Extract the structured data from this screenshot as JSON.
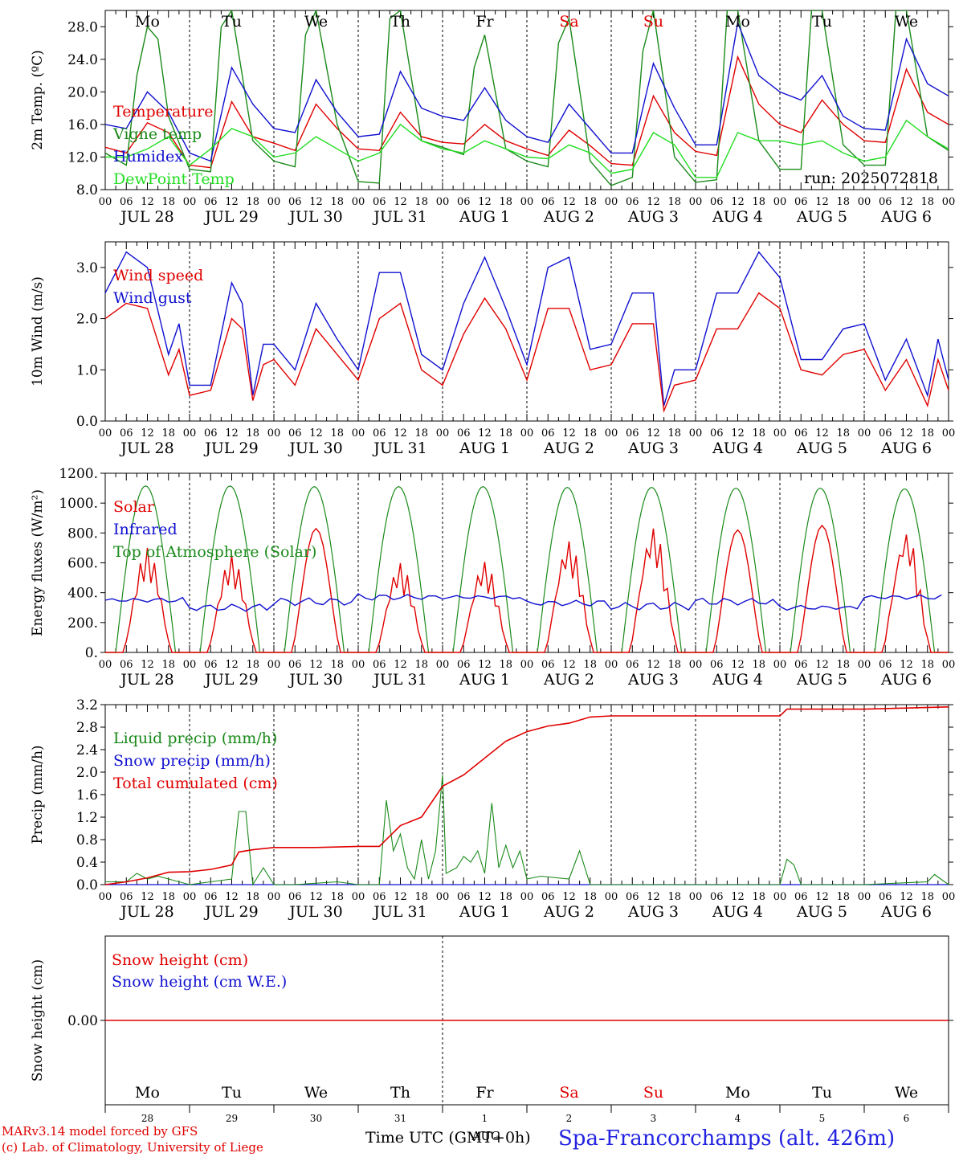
{
  "run_label": "run: 2025072818",
  "x_axis": {
    "hour_ticks": [
      "00",
      "06",
      "12",
      "18"
    ],
    "date_labels": [
      "JUL 28",
      "JUL 29",
      "JUL 30",
      "JUL 31",
      "AUG  1",
      "AUG  2",
      "AUG  3",
      "AUG  4",
      "AUG  5",
      "AUG  6"
    ],
    "weekdays": [
      "Mo",
      "Tu",
      "We",
      "Th",
      "Fr",
      "Sa",
      "Su",
      "Mo",
      "Tu",
      "We"
    ],
    "weekend_indices": [
      5,
      6
    ],
    "day_numbers": [
      "28",
      "29",
      "30",
      "31",
      "1",
      "2",
      "3",
      "4",
      "5",
      "6"
    ],
    "month_label": "AUG"
  },
  "footer": {
    "credit_line1": "MARv3.14 model forced by GFS",
    "credit_line2": "(c) Lab. of Climatology, University of Liege",
    "time_label": "Time UTC (GMT+0h)",
    "station": "Spa-Francorchamps (alt. 426m)"
  },
  "colors": {
    "red": "#e00000",
    "darkgreen": "#1a8a1a",
    "blue": "#1010d0",
    "lightgreen": "#22dd22"
  },
  "chart_data": [
    {
      "type": "line",
      "ylabel": "2m Temp. (ºC)",
      "ylim": [
        8.0,
        30.0
      ],
      "yticks": [
        8.0,
        12.0,
        16.0,
        20.0,
        24.0,
        28.0
      ],
      "ytick_labels": [
        "8.0",
        "12.0",
        "16.0",
        "20.0",
        "24.0",
        "28.0"
      ],
      "x_unit": "hours since JUL 28 00 UTC",
      "series": [
        {
          "name": "Temperature",
          "color": "red",
          "x": [
            0,
            6,
            12,
            18,
            24,
            30,
            36,
            42,
            48,
            54,
            60,
            66,
            72,
            78,
            84,
            90,
            96,
            102,
            108,
            114,
            120,
            126,
            132,
            138,
            144,
            150,
            156,
            162,
            168,
            174,
            180,
            186,
            192,
            198,
            204,
            210,
            216,
            222,
            228,
            234,
            240
          ],
          "y": [
            13.2,
            12.5,
            16.2,
            15.0,
            11.0,
            10.7,
            18.8,
            14.5,
            13.7,
            12.8,
            18.5,
            15.5,
            13.0,
            12.8,
            17.5,
            14.5,
            13.8,
            13.6,
            16.0,
            14.0,
            13.0,
            12.2,
            15.3,
            13.4,
            11.2,
            11.0,
            19.5,
            15.0,
            12.7,
            12.2,
            24.3,
            18.5,
            16.0,
            15.0,
            19.0,
            16.0,
            14.0,
            13.8,
            22.8,
            17.5,
            16.0
          ]
        },
        {
          "name": "Vigne temp",
          "color": "darkgreen",
          "x": [
            0,
            6,
            9,
            12,
            15,
            18,
            24,
            30,
            33,
            36,
            42,
            48,
            54,
            57,
            60,
            66,
            72,
            78,
            81,
            84,
            90,
            96,
            102,
            105,
            108,
            114,
            120,
            126,
            129,
            132,
            138,
            144,
            150,
            153,
            156,
            162,
            168,
            174,
            177,
            180,
            186,
            192,
            198,
            201,
            204,
            210,
            216,
            222,
            225,
            228,
            234,
            240
          ],
          "y": [
            12.5,
            11.0,
            22.0,
            28.0,
            26.5,
            17.0,
            10.5,
            10.2,
            28.0,
            30.0,
            14.0,
            11.5,
            10.8,
            27.0,
            30.0,
            16.0,
            9.0,
            8.8,
            29.0,
            30.0,
            14.0,
            13.2,
            12.3,
            23.0,
            27.0,
            13.0,
            11.5,
            10.8,
            26.0,
            29.0,
            11.5,
            8.5,
            9.5,
            25.0,
            30.0,
            12.0,
            8.9,
            9.2,
            30.0,
            30.0,
            14.0,
            10.5,
            10.5,
            30.0,
            30.0,
            13.5,
            11.0,
            11.0,
            30.0,
            30.0,
            14.5,
            12.8
          ]
        },
        {
          "name": "Humidex",
          "color": "blue",
          "x": [
            0,
            6,
            12,
            18,
            24,
            30,
            36,
            42,
            48,
            54,
            60,
            66,
            72,
            78,
            84,
            90,
            96,
            102,
            108,
            114,
            120,
            126,
            132,
            138,
            144,
            150,
            156,
            162,
            168,
            174,
            180,
            186,
            192,
            198,
            204,
            210,
            216,
            222,
            228,
            234,
            240
          ],
          "y": [
            16.0,
            15.5,
            20.0,
            17.5,
            12.5,
            11.5,
            23.0,
            18.5,
            15.5,
            15.0,
            21.5,
            17.5,
            14.5,
            14.8,
            22.5,
            18.0,
            17.0,
            16.5,
            20.5,
            16.5,
            14.5,
            13.8,
            18.5,
            15.5,
            12.5,
            12.5,
            23.5,
            18.0,
            13.5,
            13.5,
            28.5,
            22.0,
            20.0,
            19.0,
            22.0,
            17.0,
            15.5,
            15.3,
            26.5,
            21.0,
            19.5
          ]
        },
        {
          "name": "DewPoint Temp",
          "color": "lightgreen",
          "x": [
            0,
            6,
            12,
            18,
            24,
            30,
            36,
            42,
            48,
            54,
            60,
            66,
            72,
            78,
            84,
            90,
            96,
            102,
            108,
            114,
            120,
            126,
            132,
            138,
            144,
            150,
            156,
            162,
            168,
            174,
            180,
            186,
            192,
            198,
            204,
            210,
            216,
            222,
            228,
            234,
            240
          ],
          "y": [
            12.0,
            12.0,
            13.0,
            14.5,
            11.0,
            13.0,
            15.5,
            14.5,
            12.0,
            12.5,
            14.5,
            13.0,
            11.5,
            12.5,
            16.0,
            14.0,
            13.0,
            12.5,
            14.0,
            13.0,
            12.0,
            11.8,
            13.5,
            12.5,
            10.0,
            10.5,
            15.0,
            13.5,
            9.5,
            9.5,
            15.0,
            14.0,
            14.0,
            13.5,
            14.0,
            12.5,
            11.5,
            12.0,
            16.5,
            14.5,
            13.0
          ]
        }
      ]
    },
    {
      "type": "line",
      "ylabel": "10m Wind (m/s)",
      "ylim": [
        0.0,
        3.5
      ],
      "yticks": [
        0.0,
        1.0,
        2.0,
        3.0
      ],
      "ytick_labels": [
        "0.0",
        "1.0",
        "2.0",
        "3.0"
      ],
      "series": [
        {
          "name": "Wind speed",
          "color": "red",
          "x": [
            0,
            6,
            12,
            18,
            21,
            24,
            30,
            36,
            39,
            42,
            45,
            48,
            54,
            60,
            66,
            72,
            78,
            84,
            90,
            96,
            102,
            108,
            114,
            120,
            126,
            132,
            138,
            144,
            150,
            156,
            159,
            162,
            168,
            174,
            180,
            186,
            192,
            198,
            204,
            210,
            216,
            222,
            228,
            234,
            237,
            240
          ],
          "y": [
            2.0,
            2.3,
            2.2,
            0.9,
            1.4,
            0.5,
            0.6,
            2.0,
            1.8,
            0.4,
            1.1,
            1.2,
            0.7,
            1.8,
            1.3,
            0.8,
            2.0,
            2.3,
            1.0,
            0.7,
            1.7,
            2.4,
            1.8,
            0.8,
            2.2,
            2.2,
            1.0,
            1.1,
            1.9,
            1.9,
            0.2,
            0.7,
            0.8,
            1.8,
            1.8,
            2.5,
            2.2,
            1.0,
            0.9,
            1.3,
            1.4,
            0.6,
            1.2,
            0.3,
            1.2,
            0.6
          ]
        },
        {
          "name": "Wind gust",
          "color": "blue",
          "x": [
            0,
            6,
            12,
            18,
            21,
            24,
            30,
            36,
            39,
            42,
            45,
            48,
            54,
            60,
            66,
            72,
            78,
            84,
            90,
            96,
            102,
            108,
            114,
            120,
            126,
            132,
            138,
            144,
            150,
            156,
            159,
            162,
            168,
            174,
            180,
            186,
            192,
            198,
            204,
            210,
            216,
            222,
            228,
            234,
            237,
            240
          ],
          "y": [
            2.5,
            3.3,
            3.0,
            1.3,
            1.9,
            0.7,
            0.7,
            2.7,
            2.3,
            0.5,
            1.5,
            1.5,
            1.0,
            2.3,
            1.6,
            1.0,
            2.9,
            2.9,
            1.3,
            1.0,
            2.3,
            3.2,
            2.2,
            1.1,
            3.0,
            3.2,
            1.4,
            1.5,
            2.5,
            2.5,
            0.3,
            1.0,
            1.0,
            2.5,
            2.5,
            3.3,
            2.8,
            1.2,
            1.2,
            1.8,
            1.9,
            0.8,
            1.6,
            0.5,
            1.6,
            0.8
          ]
        }
      ]
    },
    {
      "type": "line",
      "ylabel": "Energy fluxes (W/m²)",
      "ylim": [
        0,
        1200
      ],
      "yticks": [
        0,
        200,
        400,
        600,
        800,
        1000,
        1200
      ],
      "ytick_labels": [
        "0.",
        "200.",
        "400.",
        "600.",
        "800.",
        "1000.",
        "1200."
      ],
      "series": [
        {
          "name": "Solar",
          "color": "red",
          "day_peaks": [
            700,
            650,
            830,
            600,
            610,
            750,
            840,
            820,
            850,
            810
          ]
        },
        {
          "name": "Infrared",
          "color": "blue",
          "day_values": [
            350,
            300,
            340,
            370,
            370,
            330,
            310,
            340,
            300,
            370
          ]
        },
        {
          "name": "Top of Atmosphere (Solar)",
          "color": "darkgreen",
          "day_peaks": [
            1115,
            1115,
            1110,
            1110,
            1110,
            1105,
            1105,
            1100,
            1100,
            1095
          ]
        }
      ]
    },
    {
      "type": "line",
      "ylabel": "Precip (mm/h)",
      "ylim": [
        0.0,
        3.2
      ],
      "yticks": [
        0.0,
        0.4,
        0.8,
        1.2,
        1.6,
        2.0,
        2.4,
        2.8,
        3.2
      ],
      "ytick_labels": [
        "0.0",
        "0.4",
        "0.8",
        "1.2",
        "1.6",
        "2.0",
        "2.4",
        "2.8",
        "3.2"
      ],
      "series": [
        {
          "name": "Liquid precip (mm/h)",
          "color": "darkgreen",
          "x": [
            0,
            6,
            9,
            12,
            15,
            18,
            24,
            30,
            36,
            38,
            40,
            42,
            45,
            48,
            54,
            66,
            72,
            78,
            80,
            82,
            84,
            86,
            88,
            90,
            92,
            94,
            96,
            97,
            100,
            102,
            104,
            106,
            108,
            110,
            112,
            114,
            116,
            118,
            120,
            124,
            132,
            135,
            138,
            144,
            168,
            192,
            194,
            196,
            198,
            216,
            234,
            236,
            240
          ],
          "y": [
            0.05,
            0.05,
            0.2,
            0.1,
            0.15,
            0.1,
            0.0,
            0.05,
            0.1,
            1.3,
            1.3,
            0.0,
            0.3,
            0.0,
            0.0,
            0.05,
            0.0,
            0.0,
            1.5,
            0.6,
            0.9,
            0.3,
            0.1,
            0.8,
            0.1,
            0.6,
            1.95,
            0.2,
            0.3,
            0.5,
            0.4,
            0.6,
            0.2,
            1.45,
            0.3,
            0.7,
            0.3,
            0.6,
            0.1,
            0.15,
            0.1,
            0.6,
            0.0,
            0.0,
            0.0,
            0.0,
            0.45,
            0.35,
            0.0,
            0.0,
            0.05,
            0.18,
            0.0
          ]
        },
        {
          "name": "Snow precip (mm/h)",
          "color": "blue",
          "x": [
            0,
            240
          ],
          "y": [
            0,
            0
          ]
        },
        {
          "name": "Total cumulated (cm)",
          "color": "red",
          "x": [
            0,
            6,
            12,
            18,
            24,
            30,
            36,
            38,
            42,
            48,
            60,
            72,
            78,
            84,
            90,
            96,
            102,
            108,
            114,
            120,
            126,
            132,
            138,
            144,
            168,
            192,
            194,
            216,
            240
          ],
          "y": [
            0.0,
            0.05,
            0.12,
            0.22,
            0.23,
            0.27,
            0.35,
            0.58,
            0.62,
            0.66,
            0.66,
            0.68,
            0.68,
            1.05,
            1.2,
            1.75,
            1.95,
            2.25,
            2.55,
            2.72,
            2.82,
            2.87,
            2.98,
            3.0,
            3.0,
            3.0,
            3.12,
            3.12,
            3.16
          ]
        }
      ]
    },
    {
      "type": "line",
      "ylabel": "Snow height (cm)",
      "yticks": [
        0.0
      ],
      "ytick_labels": [
        "0.00"
      ],
      "series": [
        {
          "name": "Snow height (cm)",
          "color": "red",
          "x": [
            0,
            240
          ],
          "y": [
            0,
            0
          ]
        },
        {
          "name": "Snow height (cm W.E.)",
          "color": "blue",
          "x": [
            0,
            240
          ],
          "y": [
            0,
            0
          ]
        }
      ]
    }
  ]
}
